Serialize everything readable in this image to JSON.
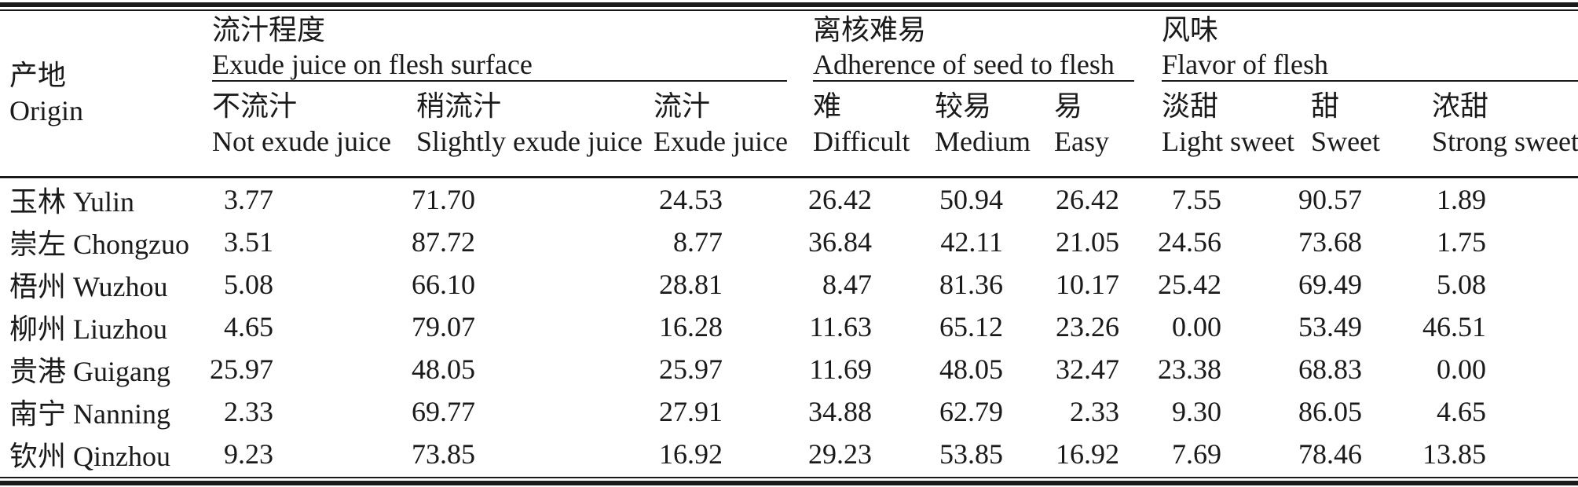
{
  "colors": {
    "text": "#1a1a1a",
    "rule": "#1a1a1a",
    "background": "#ffffff"
  },
  "table": {
    "origin_header": {
      "zh": "产地",
      "en": "Origin"
    },
    "groups": [
      {
        "zh": "流汁程度",
        "en": "Exude juice on flesh surface",
        "columns": [
          {
            "zh": "不流汁",
            "en": "Not exude juice"
          },
          {
            "zh": "稍流汁",
            "en": "Slightly exude juice"
          },
          {
            "zh": "流汁",
            "en": "Exude juice"
          }
        ]
      },
      {
        "zh": "离核难易",
        "en": "Adherence of seed to flesh",
        "columns": [
          {
            "zh": "难",
            "en": "Difficult"
          },
          {
            "zh": "较易",
            "en": "Medium"
          },
          {
            "zh": "易",
            "en": "Easy"
          }
        ]
      },
      {
        "zh": "风味",
        "en": "Flavor of flesh",
        "columns": [
          {
            "zh": "淡甜",
            "en": "Light sweet"
          },
          {
            "zh": "甜",
            "en": "Sweet"
          },
          {
            "zh": "浓甜",
            "en": "Strong sweet"
          }
        ]
      }
    ],
    "rows": [
      {
        "origin_zh": "玉林",
        "origin_en": "Yulin",
        "values": [
          "3.77",
          "71.70",
          "24.53",
          "26.42",
          "50.94",
          "26.42",
          "7.55",
          "90.57",
          "1.89"
        ]
      },
      {
        "origin_zh": "崇左",
        "origin_en": "Chongzuo",
        "values": [
          "3.51",
          "87.72",
          "8.77",
          "36.84",
          "42.11",
          "21.05",
          "24.56",
          "73.68",
          "1.75"
        ]
      },
      {
        "origin_zh": "梧州",
        "origin_en": "Wuzhou",
        "values": [
          "5.08",
          "66.10",
          "28.81",
          "8.47",
          "81.36",
          "10.17",
          "25.42",
          "69.49",
          "5.08"
        ]
      },
      {
        "origin_zh": "柳州",
        "origin_en": "Liuzhou",
        "values": [
          "4.65",
          "79.07",
          "16.28",
          "11.63",
          "65.12",
          "23.26",
          "0.00",
          "53.49",
          "46.51"
        ]
      },
      {
        "origin_zh": "贵港",
        "origin_en": "Guigang",
        "values": [
          "25.97",
          "48.05",
          "25.97",
          "11.69",
          "48.05",
          "32.47",
          "23.38",
          "68.83",
          "0.00"
        ]
      },
      {
        "origin_zh": "南宁",
        "origin_en": "Nanning",
        "values": [
          "2.33",
          "69.77",
          "27.91",
          "34.88",
          "62.79",
          "2.33",
          "9.30",
          "86.05",
          "4.65"
        ]
      },
      {
        "origin_zh": "钦州",
        "origin_en": "Qinzhou",
        "values": [
          "9.23",
          "73.85",
          "16.92",
          "29.23",
          "53.85",
          "16.92",
          "7.69",
          "78.46",
          "13.85"
        ]
      }
    ]
  },
  "chart_data": {
    "type": "table",
    "categories": [
      "玉林 Yulin",
      "崇左 Chongzuo",
      "梧州 Wuzhou",
      "柳州 Liuzhou",
      "贵港 Guigang",
      "南宁 Nanning",
      "钦州 Qinzhou"
    ],
    "column_groups": [
      "流汁程度 Exude juice on flesh surface",
      "离核难易 Adherence of seed to flesh",
      "风味 Flavor of flesh"
    ],
    "columns": [
      "不流汁 Not exude juice",
      "稍流汁 Slightly exude juice",
      "流汁 Exude juice",
      "难 Difficult",
      "较易 Medium",
      "易 Easy",
      "淡甜 Light sweet",
      "甜 Sweet",
      "浓甜 Strong sweet"
    ],
    "series": [
      {
        "name": "玉林 Yulin",
        "values": [
          3.77,
          71.7,
          24.53,
          26.42,
          50.94,
          26.42,
          7.55,
          90.57,
          1.89
        ]
      },
      {
        "name": "崇左 Chongzuo",
        "values": [
          3.51,
          87.72,
          8.77,
          36.84,
          42.11,
          21.05,
          24.56,
          73.68,
          1.75
        ]
      },
      {
        "name": "梧州 Wuzhou",
        "values": [
          5.08,
          66.1,
          28.81,
          8.47,
          81.36,
          10.17,
          25.42,
          69.49,
          5.08
        ]
      },
      {
        "name": "柳州 Liuzhou",
        "values": [
          4.65,
          79.07,
          16.28,
          11.63,
          65.12,
          23.26,
          0.0,
          53.49,
          46.51
        ]
      },
      {
        "name": "贵港 Guigang",
        "values": [
          25.97,
          48.05,
          25.97,
          11.69,
          48.05,
          32.47,
          23.38,
          68.83,
          0.0
        ]
      },
      {
        "name": "南宁 Nanning",
        "values": [
          2.33,
          69.77,
          27.91,
          34.88,
          62.79,
          2.33,
          9.3,
          86.05,
          4.65
        ]
      },
      {
        "name": "钦州 Qinzhou",
        "values": [
          9.23,
          73.85,
          16.92,
          29.23,
          53.85,
          16.92,
          7.69,
          78.46,
          13.85
        ]
      }
    ]
  }
}
